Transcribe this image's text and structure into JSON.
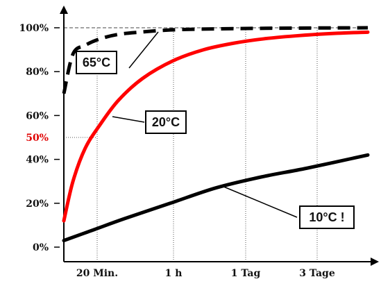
{
  "chart_data": {
    "type": "line",
    "title": "",
    "xlabel": "",
    "ylabel": "",
    "ylim": [
      0,
      105
    ],
    "grid": "dotted vertical lines at x ticks",
    "x_ticks": [
      {
        "label": "20 Min."
      },
      {
        "label": "1 h"
      },
      {
        "label": "1 Tag"
      },
      {
        "label": "3 Tage"
      }
    ],
    "y_ticks": [
      {
        "value": 0,
        "label": "0%"
      },
      {
        "value": 20,
        "label": "20%"
      },
      {
        "value": 40,
        "label": "40%"
      },
      {
        "value": 60,
        "label": "60%"
      },
      {
        "value": 80,
        "label": "80%"
      },
      {
        "value": 100,
        "label": "100%"
      }
    ],
    "highlight": {
      "value": 50,
      "label": "50%",
      "color": "#e00000",
      "x_tick_index": 0
    },
    "reference_line": {
      "value": 100,
      "style": "dashed"
    },
    "series": [
      {
        "name": "65°C",
        "color": "#000000",
        "style": "dashed",
        "label_text": "65°C",
        "x": [
          0.0,
          0.03,
          0.07,
          0.12,
          0.18,
          0.25,
          0.35,
          0.5,
          0.7,
          1.0
        ],
        "y": [
          70,
          88,
          92,
          95,
          97,
          98,
          99,
          99.5,
          99.8,
          100
        ]
      },
      {
        "name": "20°C",
        "color": "#ff0000",
        "style": "solid",
        "label_text": "20°C",
        "x": [
          0.0,
          0.03,
          0.07,
          0.12,
          0.18,
          0.26,
          0.36,
          0.46,
          0.56,
          0.66,
          0.78,
          0.9,
          1.0
        ],
        "y": [
          12,
          30,
          45,
          56,
          67,
          77,
          85,
          90,
          93,
          95,
          96.5,
          97.5,
          98
        ]
      },
      {
        "name": "10°C !",
        "color": "#000000",
        "style": "solid",
        "label_text": "10°C !",
        "x": [
          0.0,
          0.1,
          0.2,
          0.35,
          0.5,
          0.65,
          0.8,
          1.0
        ],
        "y": [
          3,
          8,
          13,
          20,
          27,
          32,
          36,
          42
        ]
      }
    ]
  }
}
